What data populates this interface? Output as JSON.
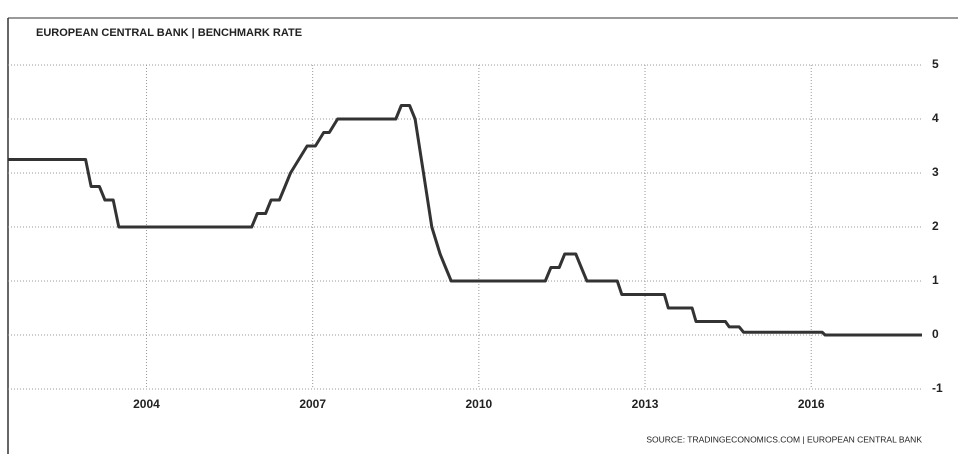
{
  "chart_data": {
    "type": "line",
    "title": "EUROPEAN CENTRAL BANK | BENCHMARK RATE",
    "source": "SOURCE: TRADINGECONOMICS.COM | EUROPEAN CENTRAL BANK",
    "x": [
      2001.5,
      2002.9,
      2003.0,
      2003.15,
      2003.25,
      2003.4,
      2003.5,
      2005.9,
      2006.0,
      2006.15,
      2006.25,
      2006.4,
      2006.5,
      2006.6,
      2006.75,
      2006.9,
      2007.05,
      2007.2,
      2007.3,
      2007.45,
      2008.5,
      2008.6,
      2008.75,
      2008.85,
      2009.0,
      2009.15,
      2009.3,
      2009.4,
      2009.5,
      2011.2,
      2011.3,
      2011.45,
      2011.55,
      2011.75,
      2011.85,
      2011.95,
      2012.5,
      2012.58,
      2013.35,
      2013.42,
      2013.85,
      2013.92,
      2014.45,
      2014.52,
      2014.7,
      2014.78,
      2016.2,
      2016.25,
      2018
    ],
    "values": [
      3.25,
      3.25,
      2.75,
      2.75,
      2.5,
      2.5,
      2.0,
      2.0,
      2.25,
      2.25,
      2.5,
      2.5,
      2.75,
      3.0,
      3.25,
      3.5,
      3.5,
      3.75,
      3.75,
      4.0,
      4.0,
      4.25,
      4.25,
      4.0,
      3.0,
      2.0,
      1.5,
      1.25,
      1.0,
      1.0,
      1.25,
      1.25,
      1.5,
      1.5,
      1.25,
      1.0,
      1.0,
      0.75,
      0.75,
      0.5,
      0.5,
      0.25,
      0.25,
      0.15,
      0.15,
      0.05,
      0.05,
      0,
      0
    ],
    "color": "#333333",
    "xlim": [
      2001.5,
      2018
    ],
    "xticks": [
      2004,
      2007,
      2010,
      2013,
      2016
    ],
    "ylim": [
      -1,
      5
    ],
    "yticks": [
      5,
      4,
      3,
      2,
      1,
      0,
      -1
    ],
    "grid": true
  }
}
